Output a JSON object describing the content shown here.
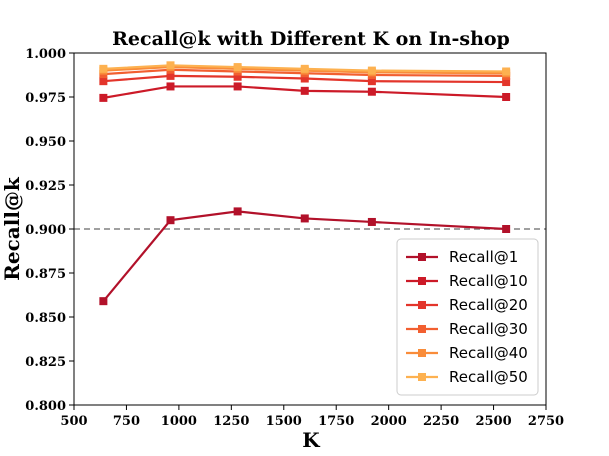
{
  "chart_data": {
    "type": "line",
    "title": "Recall@k with Different K on In-shop",
    "xlabel": "K",
    "ylabel": "Recall@k",
    "xlim": [
      500,
      2750
    ],
    "ylim": [
      0.8,
      1.0
    ],
    "xticks": [
      500,
      750,
      1000,
      1250,
      1500,
      1750,
      2000,
      2250,
      2500,
      2750
    ],
    "yticks": [
      0.8,
      0.825,
      0.85,
      0.875,
      0.9,
      0.925,
      0.95,
      0.975,
      1.0
    ],
    "xtick_labels": [
      "500",
      "750",
      "1000",
      "1250",
      "1500",
      "1750",
      "2000",
      "2250",
      "2500",
      "2750"
    ],
    "ytick_labels": [
      "0.800",
      "0.825",
      "0.850",
      "0.875",
      "0.900",
      "0.925",
      "0.950",
      "0.975",
      "1.000"
    ],
    "reference_line": {
      "y": 0.9,
      "style": "dashed",
      "color": "#808080"
    },
    "grid": false,
    "legend_position": "lower-right",
    "x": [
      640,
      960,
      1280,
      1600,
      1920,
      2560
    ],
    "series": [
      {
        "name": "Recall@1",
        "color": "#b2112a",
        "values": [
          0.859,
          0.905,
          0.91,
          0.906,
          0.904,
          0.9
        ]
      },
      {
        "name": "Recall@10",
        "color": "#cc1a28",
        "values": [
          0.9745,
          0.981,
          0.981,
          0.9785,
          0.978,
          0.975
        ]
      },
      {
        "name": "Recall@20",
        "color": "#e3352b",
        "values": [
          0.984,
          0.987,
          0.9865,
          0.9855,
          0.984,
          0.9835
        ]
      },
      {
        "name": "Recall@30",
        "color": "#f25f30",
        "values": [
          0.988,
          0.9905,
          0.9895,
          0.9885,
          0.9875,
          0.987
        ]
      },
      {
        "name": "Recall@40",
        "color": "#f98c3a",
        "values": [
          0.99,
          0.992,
          0.991,
          0.99,
          0.989,
          0.9885
        ]
      },
      {
        "name": "Recall@50",
        "color": "#fdb150",
        "values": [
          0.991,
          0.993,
          0.992,
          0.991,
          0.99,
          0.9895
        ]
      }
    ]
  }
}
